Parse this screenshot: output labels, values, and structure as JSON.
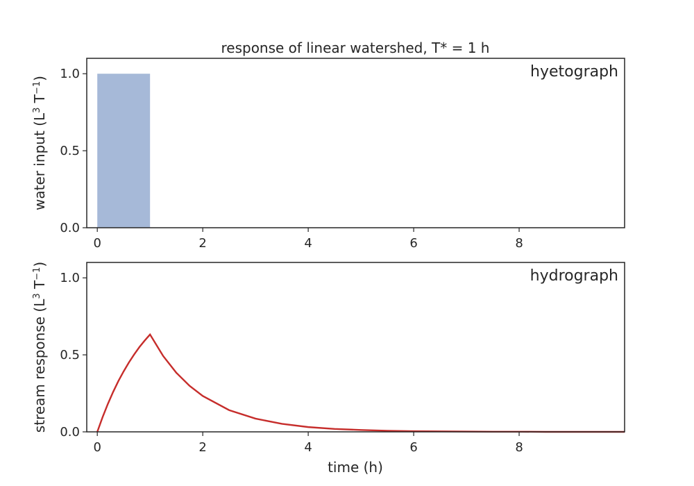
{
  "chart_data": [
    {
      "type": "bar",
      "title": "response of linear watershed, T* = 1 h",
      "panel_label": "hyetograph",
      "ylabel": "water input (L",
      "ylabel_sup1": "3",
      "ylabel_mid": " T",
      "ylabel_sup2": "−1",
      "ylabel_end": ")",
      "xlabel": "",
      "xlim": [
        -0.2,
        10
      ],
      "ylim": [
        0,
        1.1
      ],
      "xticks": [
        0,
        2,
        4,
        6,
        8
      ],
      "xtick_labels": [
        "0",
        "2",
        "4",
        "6",
        "8"
      ],
      "yticks": [
        0.0,
        0.5,
        1.0
      ],
      "ytick_labels": [
        "0.0",
        "0.5",
        "1.0"
      ],
      "bars": [
        {
          "x_start": 0,
          "x_end": 1,
          "value": 1.0
        }
      ],
      "bar_color": "#a6b9d8",
      "grid": false
    },
    {
      "type": "line",
      "panel_label": "hydrograph",
      "ylabel": "stream response (L",
      "ylabel_sup1": "3",
      "ylabel_mid": " T",
      "ylabel_sup2": "−1",
      "ylabel_end": ")",
      "xlabel": "time (h)",
      "xlim": [
        -0.2,
        10
      ],
      "ylim": [
        0,
        1.1
      ],
      "xticks": [
        0,
        2,
        4,
        6,
        8
      ],
      "xtick_labels": [
        "0",
        "2",
        "4",
        "6",
        "8"
      ],
      "yticks": [
        0.0,
        0.5,
        1.0
      ],
      "ytick_labels": [
        "0.0",
        "0.5",
        "1.0"
      ],
      "series": [
        {
          "color": "#c62d2b",
          "x": [
            0,
            0.1,
            0.2,
            0.3,
            0.4,
            0.5,
            0.6,
            0.7,
            0.8,
            0.9,
            1.0,
            1.25,
            1.5,
            1.75,
            2.0,
            2.5,
            3.0,
            3.5,
            4.0,
            4.5,
            5.0,
            5.5,
            6.0,
            6.5,
            7.0,
            7.5,
            8.0,
            8.5,
            9.0,
            9.5,
            10.0
          ],
          "y": [
            0,
            0.095,
            0.181,
            0.259,
            0.33,
            0.393,
            0.451,
            0.503,
            0.551,
            0.593,
            0.632,
            0.492,
            0.383,
            0.299,
            0.233,
            0.141,
            0.086,
            0.052,
            0.031,
            0.019,
            0.012,
            0.007,
            0.004,
            0.003,
            0.002,
            0.001,
            0.001,
            0.0,
            0.0,
            0.0,
            0.0
          ]
        }
      ],
      "grid": false
    }
  ]
}
